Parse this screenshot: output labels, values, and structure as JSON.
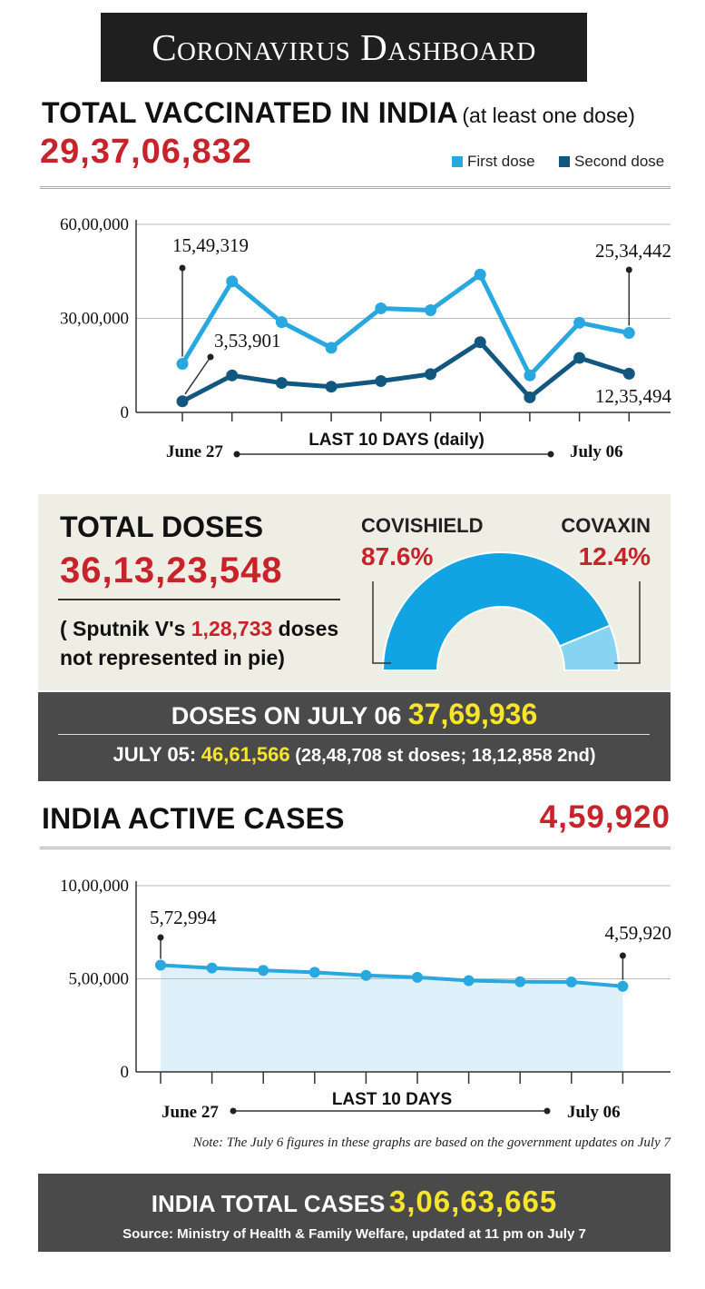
{
  "banner_title": "Coronavirus Dashboard",
  "vaccinated": {
    "title": "TOTAL VACCINATED IN INDIA",
    "subtitle": "(at least one dose)",
    "total": "29,37,06,832",
    "legend_first": "First dose",
    "legend_second": "Second dose"
  },
  "colors": {
    "first": "#29a8e0",
    "second": "#12577f",
    "red": "#c6232b",
    "yellow": "#f6e52a",
    "covishield": "#12a3e3",
    "covaxin": "#86d3f2",
    "area": "#def0fa"
  },
  "chart_data": [
    {
      "type": "line",
      "title": "TOTAL VACCINATED IN INDIA",
      "xlabel": "LAST 10 DAYS (daily)",
      "x_start_label": "June 27",
      "x_end_label": "July 06",
      "ylim": [
        0,
        6000000
      ],
      "y_ticks": [
        0,
        3000000,
        6000000
      ],
      "y_tick_labels": [
        "0",
        "30,00,000",
        "60,00,000"
      ],
      "series": [
        {
          "name": "First dose",
          "values": [
            1549319,
            4180000,
            2880000,
            2060000,
            3320000,
            3260000,
            4400000,
            1180000,
            2860000,
            2534442
          ]
        },
        {
          "name": "Second dose",
          "values": [
            353901,
            1180000,
            940000,
            820000,
            1000000,
            1220000,
            2240000,
            480000,
            1740000,
            1235494
          ]
        }
      ],
      "annotations": [
        "15,49,319",
        "3,53,901",
        "25,34,442",
        "12,35,494"
      ]
    },
    {
      "type": "pie",
      "title": "TOTAL DOSES",
      "categories": [
        "COVISHIELD",
        "COVAXIN"
      ],
      "values": [
        87.6,
        12.4
      ],
      "value_labels": [
        "87.6%",
        "12.4%"
      ]
    },
    {
      "type": "area",
      "title": "INDIA ACTIVE CASES",
      "xlabel": "LAST 10 DAYS",
      "x_start_label": "June 27",
      "x_end_label": "July 06",
      "ylim": [
        0,
        1000000
      ],
      "y_ticks": [
        0,
        500000,
        1000000
      ],
      "y_tick_labels": [
        "0",
        "5,00,000",
        "10,00,000"
      ],
      "series": [
        {
          "name": "Active cases",
          "values": [
            572994,
            558000,
            545000,
            535000,
            518000,
            508000,
            490000,
            484000,
            483000,
            459920
          ]
        }
      ],
      "annotations": [
        "5,72,994",
        "4,59,920"
      ]
    }
  ],
  "doses": {
    "title": "TOTAL DOSES",
    "total": "36,13,23,548",
    "note_pre": "( Sputnik V's ",
    "note_num": "1,28,733",
    "note_post": " doses",
    "note_line2": "not represented in pie)"
  },
  "daily": {
    "label": "DOSES ON JULY 06",
    "value": "37,69,936",
    "prev_label": "JULY 05:",
    "prev_value": "46,61,566",
    "prev_detail": "(28,48,708 st doses; 18,12,858 2nd)"
  },
  "active": {
    "title": "INDIA ACTIVE CASES",
    "value": "4,59,920"
  },
  "note": "Note: The July 6 figures in these graphs are based on the government updates on July 7",
  "total_cases": {
    "label": "INDIA TOTAL CASES",
    "value": "3,06,63,665",
    "source": "Source: Ministry of Health & Family Welfare, updated at 11 pm on July 7"
  }
}
